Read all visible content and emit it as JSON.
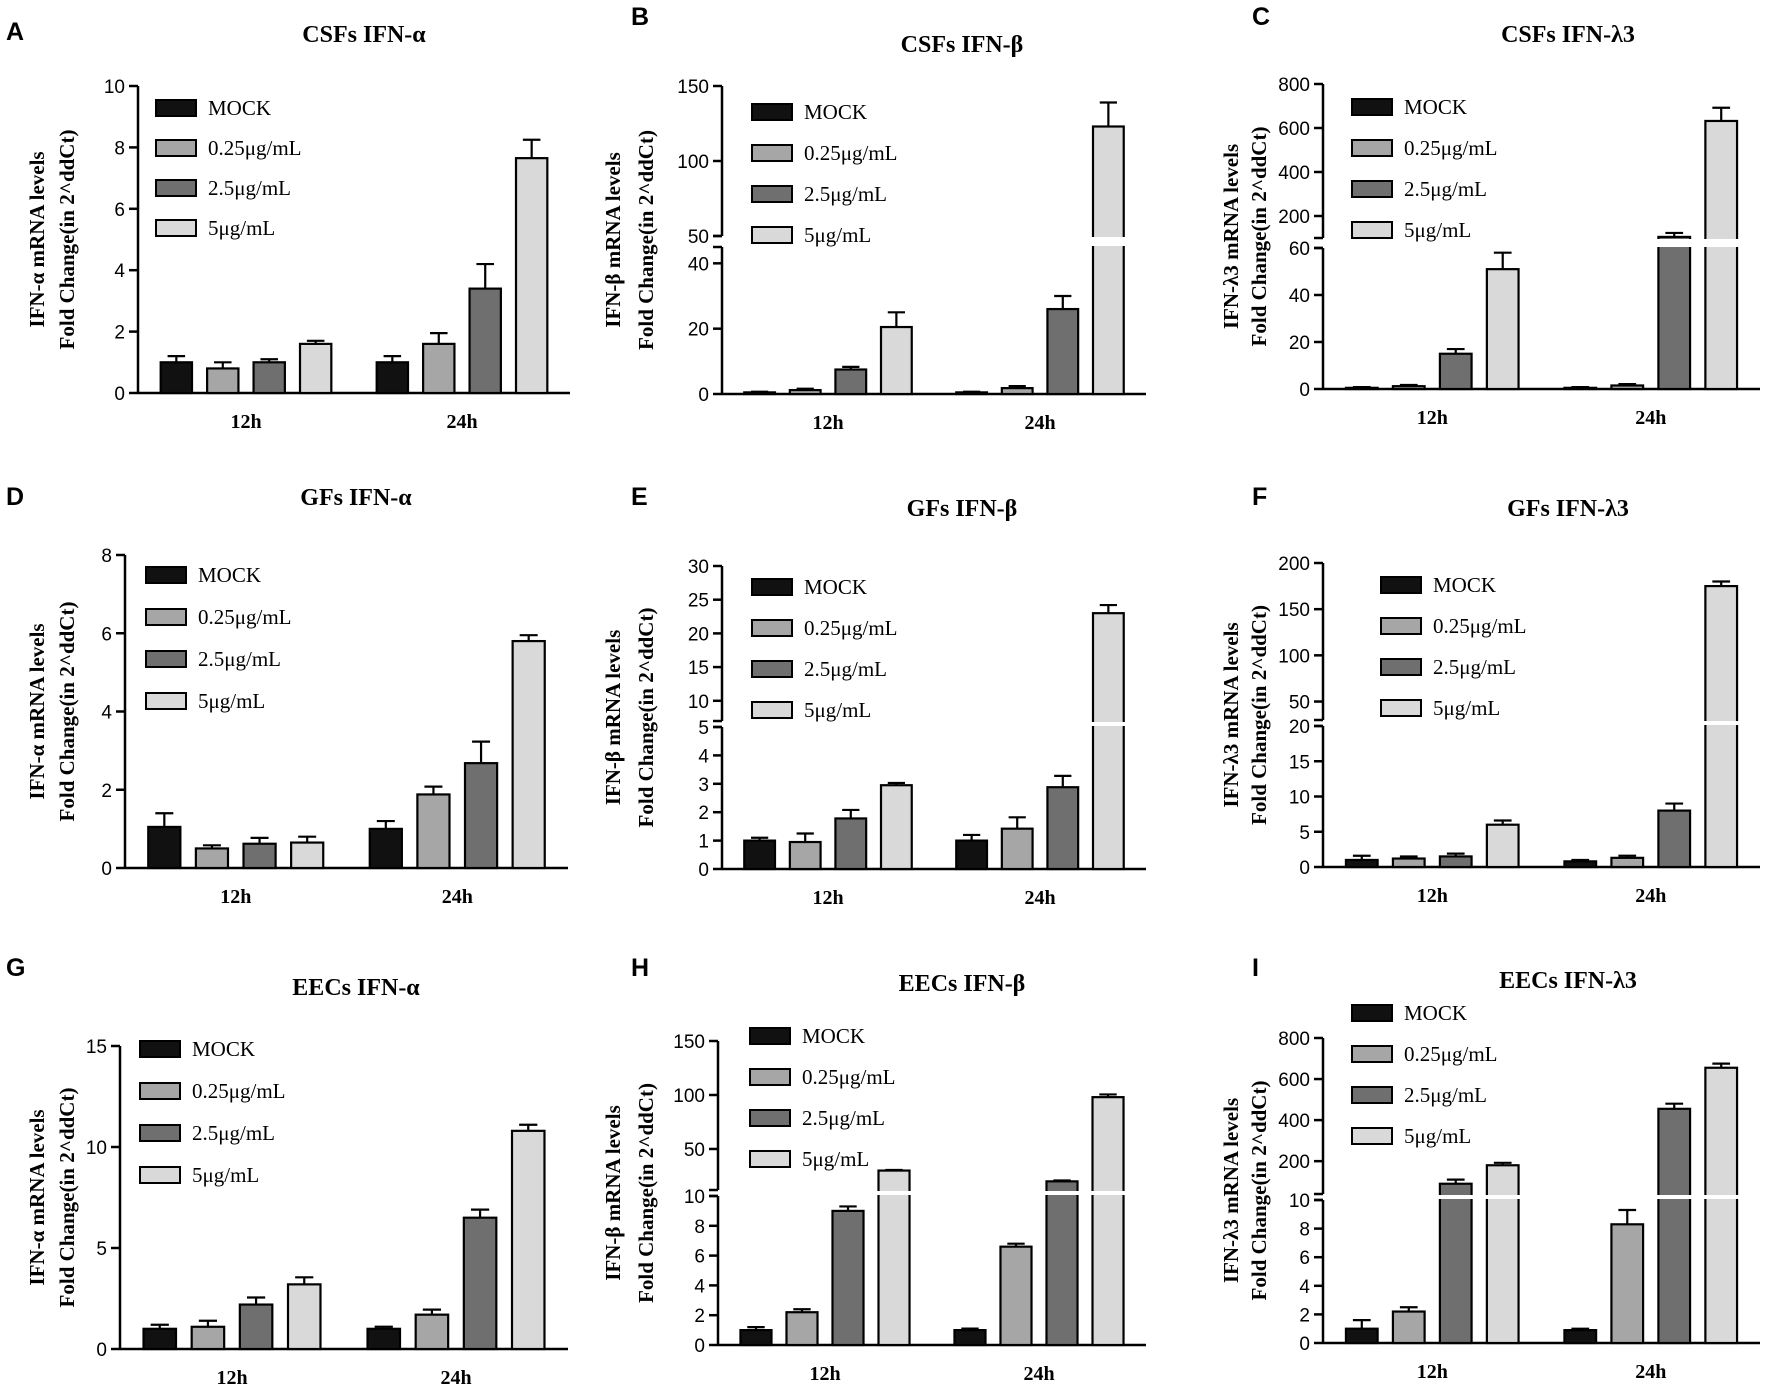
{
  "figure": {
    "colors": {
      "MOCK": "#111111",
      "0.25μg/mL": "#a6a6a6",
      "2.5μg/mL": "#6f6f6f",
      "5μg/mL": "#d9d9d9",
      "axis": "#000000",
      "background": "#ffffff"
    }
  },
  "chart_data": [
    {
      "panel": "A",
      "title": "CSFs IFN-α",
      "type": "bar",
      "ylabel": [
        "IFN-α mRNA levels",
        "Fold Change(in 2^ddCt)"
      ],
      "categories": [
        "12h",
        "24h"
      ],
      "series": [
        {
          "name": "MOCK",
          "values": [
            1.0,
            1.0
          ],
          "errors": [
            0.2,
            0.2
          ]
        },
        {
          "name": "0.25μg/mL",
          "values": [
            0.8,
            1.6
          ],
          "errors": [
            0.2,
            0.35
          ]
        },
        {
          "name": "2.5μg/mL",
          "values": [
            1.0,
            3.4
          ],
          "errors": [
            0.1,
            0.8
          ]
        },
        {
          "name": "5μg/mL",
          "values": [
            1.6,
            7.65
          ],
          "errors": [
            0.1,
            0.6
          ]
        }
      ],
      "axis": {
        "segments": [
          {
            "min": 0,
            "max": 10,
            "ticks": [
              0,
              2,
              4,
              6,
              8,
              10
            ]
          }
        ]
      },
      "legend": "top-left"
    },
    {
      "panel": "B",
      "title": "CSFs IFN-β",
      "type": "bar",
      "ylabel": [
        "IFN-β mRNA levels",
        "Fold Change(in 2^ddCt)"
      ],
      "categories": [
        "12h",
        "24h"
      ],
      "series": [
        {
          "name": "MOCK",
          "values": [
            0.5,
            0.5
          ],
          "errors": [
            0.2,
            0.2
          ]
        },
        {
          "name": "0.25μg/mL",
          "values": [
            1.2,
            1.8
          ],
          "errors": [
            0.4,
            0.6
          ]
        },
        {
          "name": "2.5μg/mL",
          "values": [
            7.5,
            26
          ],
          "errors": [
            0.8,
            4
          ]
        },
        {
          "name": "5μg/mL",
          "values": [
            20.5,
            123
          ],
          "errors": [
            4.5,
            16
          ]
        }
      ],
      "axis": {
        "segments": [
          {
            "min": 0,
            "max": 45,
            "ticks": [
              0,
              20,
              40
            ]
          },
          {
            "min": 50,
            "max": 150,
            "ticks": [
              50,
              100,
              150
            ]
          }
        ]
      },
      "legend": "top-left"
    },
    {
      "panel": "C",
      "title": "CSFs IFN-λ3",
      "type": "bar",
      "ylabel": [
        "IFN-λ3 mRNA levels",
        "Fold Change(in 2^ddCt)"
      ],
      "categories": [
        "12h",
        "24h"
      ],
      "series": [
        {
          "name": "MOCK",
          "values": [
            0.5,
            0.5
          ],
          "errors": [
            0.3,
            0.3
          ]
        },
        {
          "name": "0.25μg/mL",
          "values": [
            1.2,
            1.5
          ],
          "errors": [
            0.5,
            0.6
          ]
        },
        {
          "name": "2.5μg/mL",
          "values": [
            15,
            105
          ],
          "errors": [
            2,
            18
          ]
        },
        {
          "name": "5μg/mL",
          "values": [
            51,
            632
          ],
          "errors": [
            7,
            60
          ]
        }
      ],
      "axis": {
        "segments": [
          {
            "min": 0,
            "max": 60,
            "ticks": [
              0,
              20,
              40,
              60
            ]
          },
          {
            "min": 100,
            "max": 800,
            "ticks": [
              200,
              400,
              600,
              800
            ]
          }
        ]
      },
      "legend": "top-left"
    },
    {
      "panel": "D",
      "title": "GFs IFN-α",
      "type": "bar",
      "ylabel": [
        "IFN-α mRNA levels",
        "Fold Change(in 2^ddCt)"
      ],
      "categories": [
        "12h",
        "24h"
      ],
      "series": [
        {
          "name": "MOCK",
          "values": [
            1.05,
            1.0
          ],
          "errors": [
            0.35,
            0.2
          ]
        },
        {
          "name": "0.25μg/mL",
          "values": [
            0.5,
            1.88
          ],
          "errors": [
            0.08,
            0.2
          ]
        },
        {
          "name": "2.5μg/mL",
          "values": [
            0.62,
            2.68
          ],
          "errors": [
            0.15,
            0.55
          ]
        },
        {
          "name": "5μg/mL",
          "values": [
            0.65,
            5.8
          ],
          "errors": [
            0.15,
            0.15
          ]
        }
      ],
      "axis": {
        "segments": [
          {
            "min": 0,
            "max": 8,
            "ticks": [
              0,
              2,
              4,
              6,
              8
            ]
          }
        ]
      },
      "legend": "top-left"
    },
    {
      "panel": "E",
      "title": "GFs IFN-β",
      "type": "bar",
      "ylabel": [
        "IFN-β mRNA levels",
        "Fold Change(in 2^ddCt)"
      ],
      "categories": [
        "12h",
        "24h"
      ],
      "series": [
        {
          "name": "MOCK",
          "values": [
            1.0,
            1.0
          ],
          "errors": [
            0.1,
            0.2
          ]
        },
        {
          "name": "0.25μg/mL",
          "values": [
            0.95,
            1.42
          ],
          "errors": [
            0.3,
            0.4
          ]
        },
        {
          "name": "2.5μg/mL",
          "values": [
            1.78,
            2.88
          ],
          "errors": [
            0.3,
            0.4
          ]
        },
        {
          "name": "5μg/mL",
          "values": [
            2.95,
            23
          ],
          "errors": [
            0.08,
            1.2
          ]
        }
      ],
      "axis": {
        "segments": [
          {
            "min": 0,
            "max": 5,
            "ticks": [
              0,
              1,
              2,
              3,
              4,
              5
            ]
          },
          {
            "min": 7,
            "max": 30,
            "ticks": [
              10,
              15,
              20,
              25,
              30
            ]
          }
        ]
      },
      "legend": "top-left"
    },
    {
      "panel": "F",
      "title": "GFs IFN-λ3",
      "type": "bar",
      "ylabel": [
        "IFN-λ3 mRNA levels",
        "Fold Change(in 2^ddCt)"
      ],
      "categories": [
        "12h",
        "24h"
      ],
      "series": [
        {
          "name": "MOCK",
          "values": [
            1.0,
            0.8
          ],
          "errors": [
            0.6,
            0.2
          ]
        },
        {
          "name": "0.25μg/mL",
          "values": [
            1.2,
            1.3
          ],
          "errors": [
            0.3,
            0.3
          ]
        },
        {
          "name": "2.5μg/mL",
          "values": [
            1.5,
            8.0
          ],
          "errors": [
            0.4,
            1.0
          ]
        },
        {
          "name": "5μg/mL",
          "values": [
            6.0,
            175
          ],
          "errors": [
            0.6,
            5
          ]
        }
      ],
      "axis": {
        "segments": [
          {
            "min": 0,
            "max": 20,
            "ticks": [
              0,
              5,
              10,
              15,
              20
            ]
          },
          {
            "min": 30,
            "max": 200,
            "ticks": [
              50,
              100,
              150,
              200
            ]
          }
        ]
      },
      "legend": "top-left"
    },
    {
      "panel": "G",
      "title": "EECs IFN-α",
      "type": "bar",
      "ylabel": [
        "IFN-α mRNA levels",
        "Fold Change(in 2^ddCt)"
      ],
      "categories": [
        "12h",
        "24h"
      ],
      "series": [
        {
          "name": "MOCK",
          "values": [
            1.0,
            1.0
          ],
          "errors": [
            0.2,
            0.1
          ]
        },
        {
          "name": "0.25μg/mL",
          "values": [
            1.1,
            1.7
          ],
          "errors": [
            0.3,
            0.25
          ]
        },
        {
          "name": "2.5μg/mL",
          "values": [
            2.2,
            6.5
          ],
          "errors": [
            0.35,
            0.4
          ]
        },
        {
          "name": "5μg/mL",
          "values": [
            3.2,
            10.8
          ],
          "errors": [
            0.35,
            0.3
          ]
        }
      ],
      "axis": {
        "segments": [
          {
            "min": 0,
            "max": 15,
            "ticks": [
              0,
              5,
              10,
              15
            ]
          }
        ]
      },
      "legend": "top-left"
    },
    {
      "panel": "H",
      "title": "EECs IFN-β",
      "type": "bar",
      "ylabel": [
        "IFN-β mRNA levels",
        "Fold Change(in 2^ddCt)"
      ],
      "categories": [
        "12h",
        "24h"
      ],
      "series": [
        {
          "name": "MOCK",
          "values": [
            1.0,
            1.0
          ],
          "errors": [
            0.2,
            0.1
          ]
        },
        {
          "name": "0.25μg/mL",
          "values": [
            2.2,
            6.6
          ],
          "errors": [
            0.2,
            0.2
          ]
        },
        {
          "name": "2.5μg/mL",
          "values": [
            9,
            20
          ],
          "errors": [
            0.3,
            0.8
          ]
        },
        {
          "name": "5μg/mL",
          "values": [
            30,
            98
          ],
          "errors": [
            0.6,
            2.5
          ]
        }
      ],
      "axis": {
        "segments": [
          {
            "min": 0,
            "max": 10,
            "ticks": [
              0,
              2,
              4,
              6,
              8,
              10
            ]
          },
          {
            "min": 12,
            "max": 150,
            "ticks": [
              50,
              100,
              150
            ]
          }
        ]
      },
      "legend": "top-left"
    },
    {
      "panel": "I",
      "title": "EECs IFN-λ3",
      "type": "bar",
      "ylabel": [
        "IFN-λ3 mRNA levels",
        "Fold Change(in 2^ddCt)"
      ],
      "categories": [
        "12h",
        "24h"
      ],
      "series": [
        {
          "name": "MOCK",
          "values": [
            1.0,
            0.9
          ],
          "errors": [
            0.6,
            0.1
          ]
        },
        {
          "name": "0.25μg/mL",
          "values": [
            2.2,
            8.3
          ],
          "errors": [
            0.3,
            1.0
          ]
        },
        {
          "name": "2.5μg/mL",
          "values": [
            90,
            455
          ],
          "errors": [
            20,
            25
          ]
        },
        {
          "name": "5μg/mL",
          "values": [
            180,
            655
          ],
          "errors": [
            12,
            20
          ]
        }
      ],
      "axis": {
        "segments": [
          {
            "min": 0,
            "max": 10,
            "ticks": [
              0,
              2,
              4,
              6,
              8,
              10
            ]
          },
          {
            "min": 40,
            "max": 800,
            "ticks": [
              200,
              400,
              600,
              800
            ]
          }
        ]
      },
      "legend": "top-left"
    }
  ]
}
